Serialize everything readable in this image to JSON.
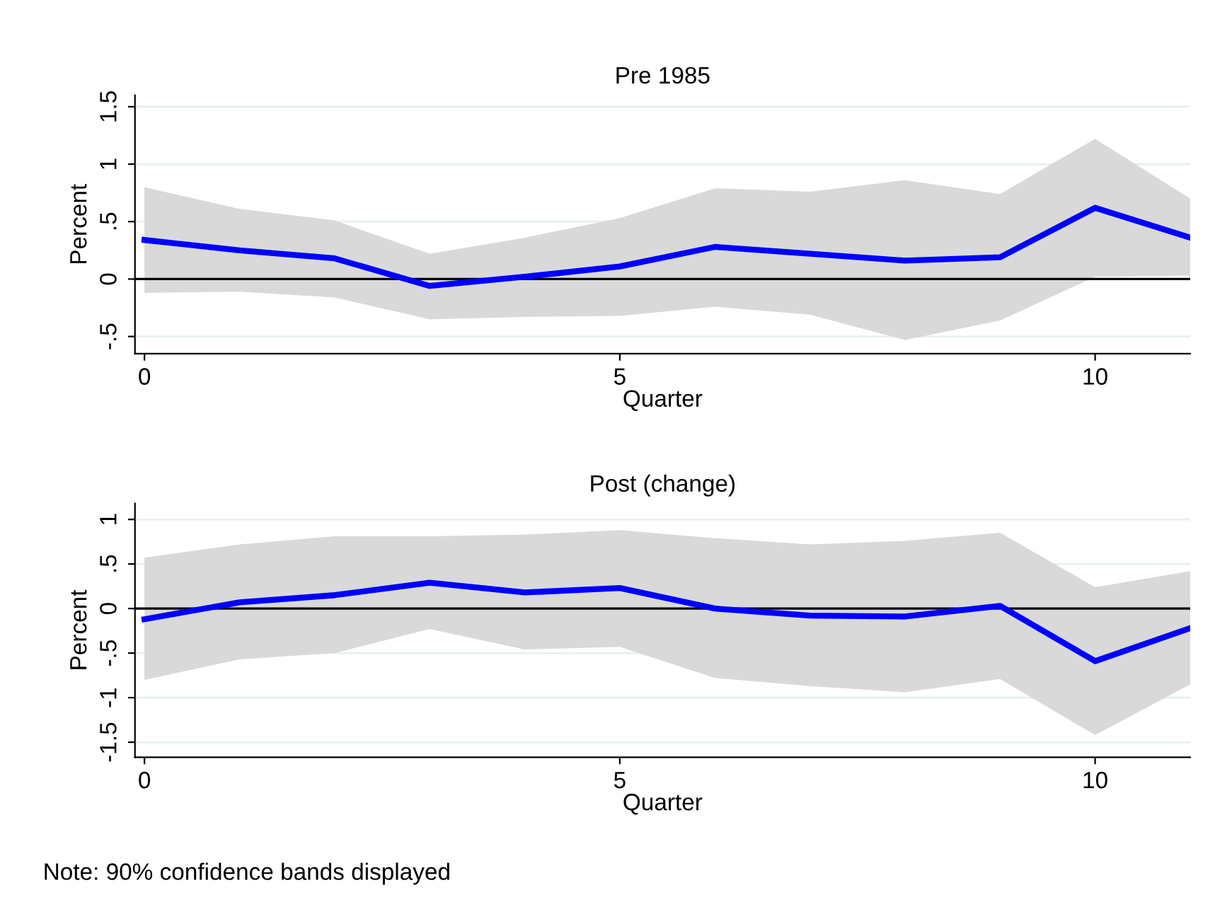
{
  "chart_data": [
    {
      "type": "line",
      "title": "Pre 1985",
      "xlabel": "Quarter",
      "ylabel": "Percent",
      "x": [
        0,
        1,
        2,
        3,
        4,
        5,
        6,
        7,
        8,
        9,
        10,
        11
      ],
      "series": [
        {
          "color": "#0000ff",
          "values": [
            0.34,
            0.25,
            0.18,
            -0.06,
            0.02,
            0.11,
            0.28,
            0.22,
            0.16,
            0.19,
            0.62,
            0.36
          ],
          "upper": [
            0.8,
            0.61,
            0.51,
            0.22,
            0.36,
            0.53,
            0.79,
            0.76,
            0.86,
            0.74,
            1.22,
            0.7
          ],
          "lower": [
            -0.12,
            -0.11,
            -0.16,
            -0.35,
            -0.33,
            -0.32,
            -0.24,
            -0.31,
            -0.53,
            -0.36,
            0.02,
            0.03
          ]
        }
      ],
      "xlim": [
        -0.1,
        11
      ],
      "xticks": [
        0,
        5,
        10
      ],
      "ylim": [
        -0.65,
        1.6
      ],
      "yticks": [
        {
          "value": -0.5,
          "label": "-.5"
        },
        0,
        {
          "value": 0.5,
          "label": ".5"
        },
        1,
        1.5
      ],
      "ref_lines": [
        {
          "axis": "y",
          "value": 0,
          "color": "#000000"
        }
      ],
      "grid": "y"
    },
    {
      "type": "line",
      "title": "Post (change)",
      "xlabel": "Quarter",
      "ylabel": "Percent",
      "x": [
        0,
        1,
        2,
        3,
        4,
        5,
        6,
        7,
        8,
        9,
        10,
        11
      ],
      "series": [
        {
          "color": "#0000ff",
          "values": [
            -0.12,
            0.07,
            0.15,
            0.29,
            0.18,
            0.23,
            0.0,
            -0.08,
            -0.09,
            0.03,
            -0.59,
            -0.22
          ],
          "upper": [
            0.57,
            0.72,
            0.81,
            0.81,
            0.83,
            0.88,
            0.79,
            0.72,
            0.76,
            0.85,
            0.24,
            0.42
          ],
          "lower": [
            -0.8,
            -0.57,
            -0.5,
            -0.23,
            -0.46,
            -0.43,
            -0.78,
            -0.87,
            -0.94,
            -0.79,
            -1.42,
            -0.85
          ]
        }
      ],
      "xlim": [
        -0.1,
        11
      ],
      "xticks": [
        0,
        5,
        10
      ],
      "ylim": [
        -1.67,
        1.18
      ],
      "yticks": [
        {
          "value": -1.5,
          "label": "-1.5"
        },
        {
          "value": -1,
          "label": "-1"
        },
        {
          "value": -0.5,
          "label": "-.5"
        },
        0,
        {
          "value": 0.5,
          "label": ".5"
        },
        1
      ],
      "ref_lines": [
        {
          "axis": "y",
          "value": 0,
          "color": "#000000"
        }
      ],
      "grid": "y",
      "annotations": [
        "Note: 90% confidence bands displayed"
      ]
    }
  ]
}
